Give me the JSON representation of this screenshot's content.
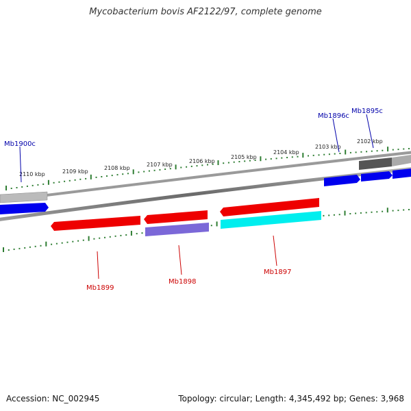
{
  "title": "Mycobacterium bovis AF2122/97, complete genome",
  "footer": {
    "accession": "Accession: NC_002945",
    "summary": "Topology: circular; Length: 4,345,492 bp; Genes: 3,968"
  },
  "scale": {
    "unit": "kbp",
    "labels": [
      "2110 kbp",
      "2109 kbp",
      "2108 kbp",
      "2107 kbp",
      "2106 kbp",
      "2105 kbp",
      "2104 kbp",
      "2103 kbp",
      "2102 kbp"
    ]
  },
  "genes": [
    {
      "id": "Mb1900c",
      "strand": "forward",
      "label_color": "#0000aa"
    },
    {
      "id": "Mb1896c",
      "strand": "forward",
      "label_color": "#0000aa"
    },
    {
      "id": "Mb1895c",
      "strand": "forward",
      "label_color": "#0000aa"
    },
    {
      "id": "Mb1899",
      "strand": "reverse",
      "label_color": "#cc0000"
    },
    {
      "id": "Mb1898",
      "strand": "reverse",
      "label_color": "#cc0000"
    },
    {
      "id": "Mb1897",
      "strand": "reverse",
      "label_color": "#cc0000"
    }
  ],
  "colors": {
    "backbone": "#808080",
    "tick": "#2e7d32",
    "forward_gene": "#0000ee",
    "reverse_gene": "#ee0000",
    "cyan_feature": "#00eeee",
    "purple_feature": "#7b68d8",
    "gray_feature": "#a9a9a9",
    "dark_gray_feature": "#555555"
  }
}
